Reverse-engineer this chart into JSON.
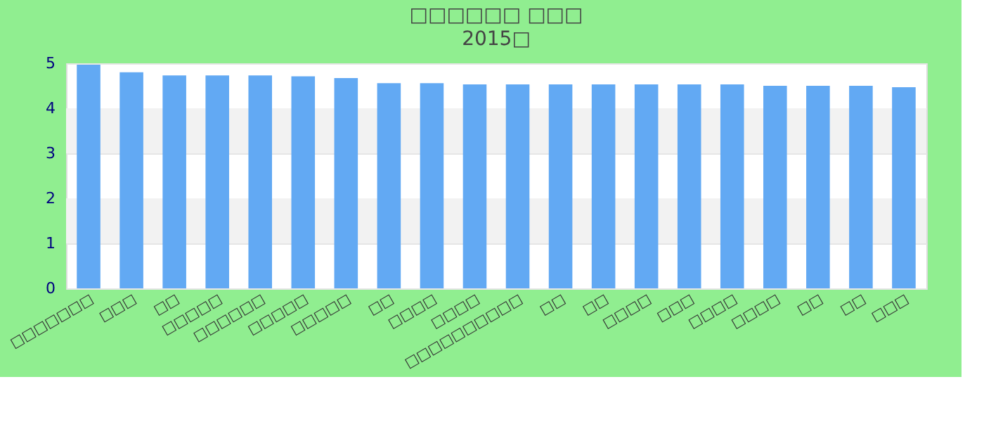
{
  "chart_data": {
    "type": "bar",
    "title": "□□□□□□ □□□",
    "subtitle": "2015□",
    "categories": [
      "□□□□□□□",
      "□□□",
      "□□",
      "□□□□□",
      "□□□□□□",
      "□□□□□",
      "□□□□□",
      "□□",
      "□□□□",
      "□□□□",
      "□□□□□□□□□□",
      "□□",
      "□□",
      "□□□□",
      "□□□",
      "□□□□",
      "□□□□",
      "□□",
      "□□",
      "□□□"
    ],
    "values": [
      4.97,
      4.8,
      4.73,
      4.73,
      4.73,
      4.71,
      4.67,
      4.56,
      4.56,
      4.53,
      4.53,
      4.53,
      4.53,
      4.53,
      4.53,
      4.53,
      4.5,
      4.5,
      4.5,
      4.47
    ],
    "color": "#62a9f3",
    "ylim": [
      0,
      5
    ],
    "yticks": [
      0,
      1,
      2,
      3,
      4,
      5
    ],
    "grid": true
  }
}
